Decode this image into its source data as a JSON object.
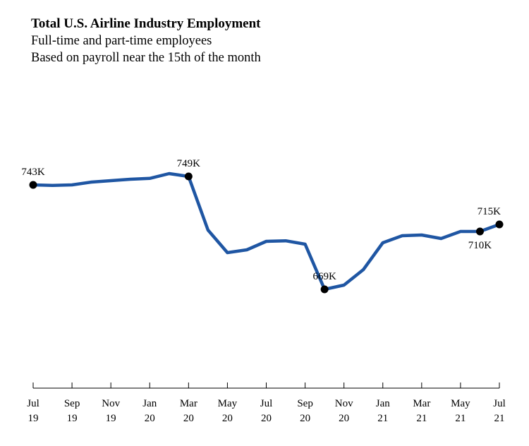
{
  "header": {
    "title": "Total U.S. Airline Industry Employment",
    "subtitle1": "Full-time and part-time employees",
    "subtitle2": "Based on payroll near the 15th of the month"
  },
  "colors": {
    "line": "#1f56a3",
    "marker": "#000000",
    "axis": "#000000"
  },
  "chart_data": {
    "type": "line",
    "title": "Total U.S. Airline Industry Employment",
    "subtitle": [
      "Full-time and part-time employees",
      "Based on payroll near the 15th of the month"
    ],
    "xlabel": "",
    "ylabel": "",
    "grid": false,
    "legend": "none",
    "ylim": [
      640,
      760
    ],
    "x": [
      "Jul 19",
      "Aug 19",
      "Sep 19",
      "Oct 19",
      "Nov 19",
      "Dec 19",
      "Jan 20",
      "Feb 20",
      "Mar 20",
      "Apr 20",
      "May 20",
      "Jun 20",
      "Jul 20",
      "Aug 20",
      "Sep 20",
      "Oct 20",
      "Nov 20",
      "Dec 20",
      "Jan 21",
      "Feb 21",
      "Mar 21",
      "Apr 21",
      "May 21",
      "Jun 21",
      "Jul 21"
    ],
    "series": [
      {
        "values": [
          743,
          742.6,
          743,
          745,
          746,
          747,
          747.6,
          751,
          749,
          711,
          695,
          697,
          703,
          703.4,
          701,
          669,
          672,
          683,
          702,
          707,
          707.5,
          705,
          710,
          710,
          715
        ]
      }
    ],
    "tick_labels": [
      {
        "index": 0,
        "line1": "Jul",
        "line2": "19"
      },
      {
        "index": 2,
        "line1": "Sep",
        "line2": "19"
      },
      {
        "index": 4,
        "line1": "Nov",
        "line2": "19"
      },
      {
        "index": 6,
        "line1": "Jan",
        "line2": "20"
      },
      {
        "index": 8,
        "line1": "Mar",
        "line2": "20"
      },
      {
        "index": 10,
        "line1": "May",
        "line2": "20"
      },
      {
        "index": 12,
        "line1": "Jul",
        "line2": "20"
      },
      {
        "index": 14,
        "line1": "Sep",
        "line2": "20"
      },
      {
        "index": 16,
        "line1": "Nov",
        "line2": "20"
      },
      {
        "index": 18,
        "line1": "Jan",
        "line2": "21"
      },
      {
        "index": 20,
        "line1": "Mar",
        "line2": "21"
      },
      {
        "index": 22,
        "line1": "May",
        "line2": "21"
      },
      {
        "index": 24,
        "line1": "Jul",
        "line2": "21"
      }
    ],
    "annotations": [
      {
        "index": 0,
        "text": "743K",
        "position": "above"
      },
      {
        "index": 8,
        "text": "749K",
        "position": "above"
      },
      {
        "index": 15,
        "text": "669K",
        "position": "above"
      },
      {
        "index": 23,
        "text": "710K",
        "position": "below"
      },
      {
        "index": 24,
        "text": "715K",
        "position": "above"
      }
    ]
  }
}
